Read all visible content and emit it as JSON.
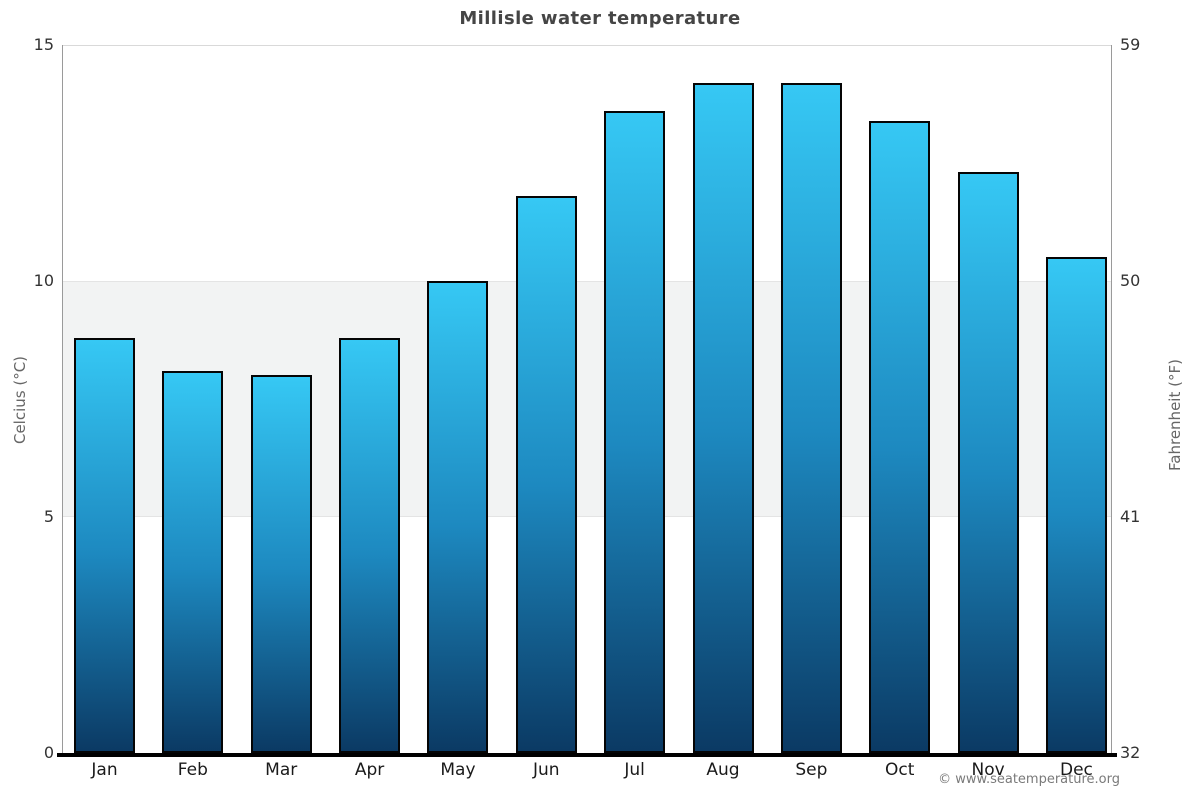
{
  "title": "Millisle water temperature",
  "chart_data": {
    "type": "bar",
    "title": "Millisle water temperature",
    "categories": [
      "Jan",
      "Feb",
      "Mar",
      "Apr",
      "May",
      "Jun",
      "Jul",
      "Aug",
      "Sep",
      "Oct",
      "Nov",
      "Dec"
    ],
    "values": [
      8.8,
      8.1,
      8.0,
      8.8,
      10.0,
      11.8,
      13.6,
      14.2,
      14.2,
      13.4,
      12.3,
      10.5
    ],
    "unit": "°C",
    "ylabel_left": "Celcius (°C)",
    "ylabel_right": "Fahrenheit (°F)",
    "xlabel": "",
    "ylim_celsius": [
      0,
      15
    ],
    "ylim_fahrenheit": [
      32,
      59
    ],
    "yticks_celsius": [
      15,
      10,
      5,
      0
    ],
    "yticks_fahrenheit": [
      59,
      50,
      41,
      32
    ],
    "grid": "horizontal-band",
    "band_celsius": {
      "from": 5,
      "to": 10
    },
    "legend": "none",
    "colors": {
      "bar_gradient_top": "#36c8f4",
      "bar_gradient_bottom": "#0b3a64",
      "bar_border": "#050505",
      "band_fill": "#f2f3f3",
      "axis_line": "#9a9a9a",
      "bottom_axis": "#000000",
      "title_text": "#454545",
      "tick_text": "#333333"
    }
  },
  "footer": {
    "copyright": "© www.seatemperature.org"
  }
}
